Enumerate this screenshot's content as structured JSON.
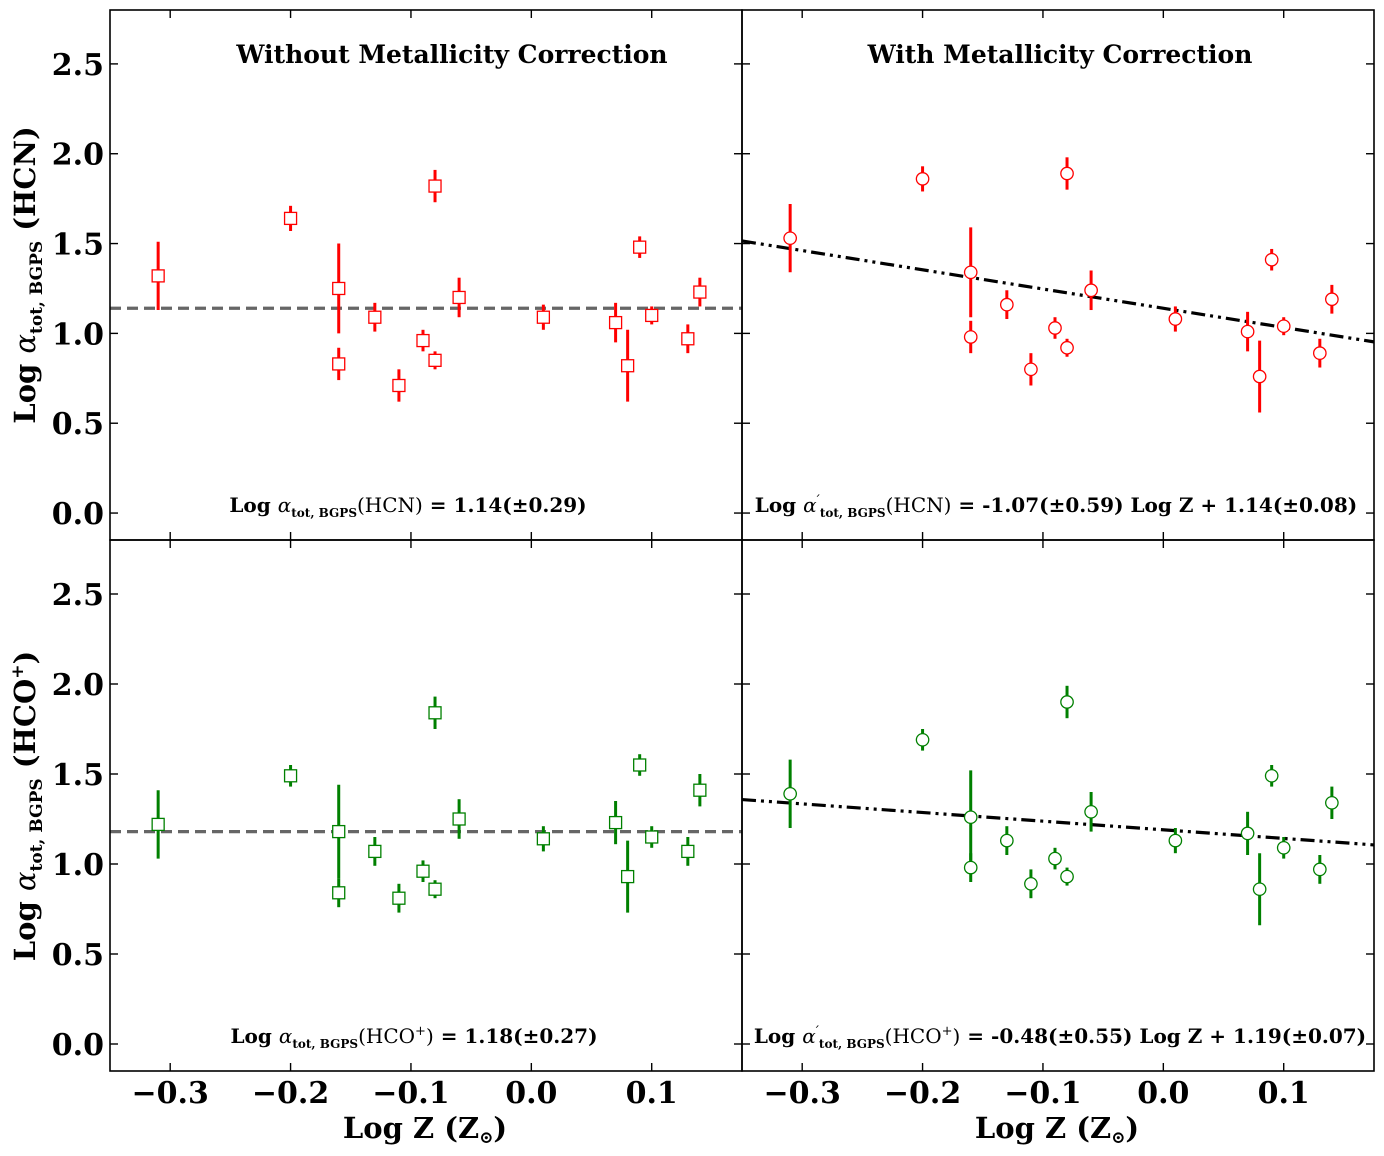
{
  "chart_data": {
    "type": "scatter",
    "x_axis": {
      "label": "Log Z (Z",
      "label_symbol": "⊙",
      "label_close": ")",
      "lim": [
        -0.35,
        0.175
      ],
      "ticks": [
        -0.3,
        -0.2,
        -0.1,
        0.0,
        0.1
      ],
      "tick_labels": [
        "−0.3",
        "−0.2",
        "−0.1",
        "0.0",
        "0.1"
      ]
    },
    "y_axis": {
      "lim": [
        -0.15,
        2.8
      ],
      "ticks": [
        0.0,
        0.5,
        1.0,
        1.5,
        2.0,
        2.5
      ],
      "tick_labels": [
        "0.0",
        "0.5",
        "1.0",
        "1.5",
        "2.0",
        "2.5"
      ]
    },
    "columns": [
      "Without Metallicity Correction",
      "With Metallicity Correction"
    ],
    "ylabels": {
      "hcn": {
        "pre": "Log ",
        "sym": "α",
        "sub": "tot, BGPS",
        "post": " (HCN)"
      },
      "hco": {
        "pre": "Log ",
        "sym": "α",
        "sub": "tot, BGPS",
        "post": " (HCO",
        "sup": "+",
        "close": ")"
      }
    },
    "colors": {
      "hcn": "#ff0000",
      "hco": "#008000",
      "fit": "#000000",
      "mean": "#666666"
    },
    "x": [
      -0.31,
      -0.2,
      -0.16,
      -0.16,
      -0.13,
      -0.11,
      -0.09,
      -0.08,
      -0.08,
      -0.06,
      0.01,
      0.07,
      0.08,
      0.09,
      0.1,
      0.13,
      0.14
    ],
    "panels": [
      {
        "id": "hcn-uncorrected",
        "marker": "square",
        "color": "#ff0000",
        "y": [
          1.32,
          1.64,
          1.25,
          0.83,
          1.09,
          0.71,
          0.96,
          0.85,
          1.82,
          1.2,
          1.09,
          1.06,
          0.82,
          1.48,
          1.1,
          0.97,
          1.23
        ],
        "err": [
          0.19,
          0.07,
          0.25,
          0.09,
          0.08,
          0.09,
          0.06,
          0.05,
          0.09,
          0.11,
          0.07,
          0.11,
          0.2,
          0.06,
          0.05,
          0.08,
          0.08
        ],
        "line": {
          "style": "dashed",
          "slope": 0.0,
          "intercept": 1.14
        },
        "equation": {
          "lhs_pre": "Log ",
          "sym": "α",
          "prime": "",
          "sub": "tot, BGPS",
          "species": "(HCN)",
          "species_sup": "",
          "species_close": "",
          "rhs": " = 1.14(±0.29)"
        }
      },
      {
        "id": "hcn-corrected",
        "marker": "circle",
        "color": "#ff0000",
        "y": [
          1.53,
          1.86,
          1.34,
          0.98,
          1.16,
          0.8,
          1.03,
          0.92,
          1.89,
          1.24,
          1.08,
          1.01,
          0.76,
          1.41,
          1.04,
          0.89,
          1.19
        ],
        "err": [
          0.19,
          0.07,
          0.25,
          0.09,
          0.08,
          0.09,
          0.06,
          0.05,
          0.09,
          0.11,
          0.07,
          0.11,
          0.2,
          0.06,
          0.05,
          0.08,
          0.08
        ],
        "line": {
          "style": "dashdot",
          "slope": -1.07,
          "intercept": 1.14
        },
        "equation": {
          "lhs_pre": "Log ",
          "sym": "α",
          "prime": "′",
          "sub": "tot, BGPS",
          "species": "(HCN)",
          "species_sup": "",
          "species_close": "",
          "rhs": " = -1.07(±0.59) Log Z + 1.14(±0.08)"
        }
      },
      {
        "id": "hco-uncorrected",
        "marker": "square",
        "color": "#008000",
        "y": [
          1.22,
          1.49,
          1.18,
          0.84,
          1.07,
          0.81,
          0.96,
          0.86,
          1.84,
          1.25,
          1.14,
          1.23,
          0.93,
          1.55,
          1.15,
          1.07,
          1.41
        ],
        "err": [
          0.19,
          0.06,
          0.26,
          0.08,
          0.08,
          0.08,
          0.06,
          0.05,
          0.09,
          0.11,
          0.07,
          0.12,
          0.2,
          0.06,
          0.06,
          0.08,
          0.09
        ],
        "line": {
          "style": "dashed",
          "slope": 0.0,
          "intercept": 1.18
        },
        "equation": {
          "lhs_pre": "Log ",
          "sym": "α",
          "prime": "",
          "sub": "tot, BGPS",
          "species": "(HCO",
          "species_sup": "+",
          "species_close": ")",
          "rhs": " = 1.18(±0.27)"
        }
      },
      {
        "id": "hco-corrected",
        "marker": "circle",
        "color": "#008000",
        "y": [
          1.39,
          1.69,
          1.26,
          0.98,
          1.13,
          0.89,
          1.03,
          0.93,
          1.9,
          1.29,
          1.13,
          1.17,
          0.86,
          1.49,
          1.09,
          0.97,
          1.34
        ],
        "err": [
          0.19,
          0.06,
          0.26,
          0.08,
          0.08,
          0.08,
          0.06,
          0.05,
          0.09,
          0.11,
          0.07,
          0.12,
          0.2,
          0.06,
          0.06,
          0.08,
          0.09
        ],
        "line": {
          "style": "dashdot",
          "slope": -0.48,
          "intercept": 1.19
        },
        "equation": {
          "lhs_pre": "Log ",
          "sym": "α",
          "prime": "′",
          "sub": "tot, BGPS",
          "species": "(HCO",
          "species_sup": "+",
          "species_close": ")",
          "rhs": " = -0.48(±0.55) Log Z + 1.19(±0.07)"
        }
      }
    ]
  }
}
